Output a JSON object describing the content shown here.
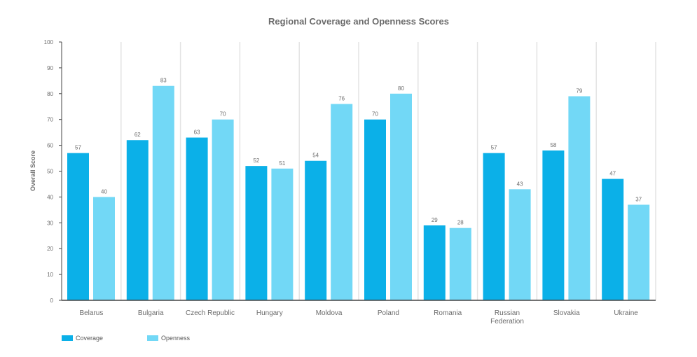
{
  "chart_data": {
    "type": "bar",
    "title": "Regional Coverage and Openness Scores",
    "xlabel": "",
    "ylabel": "Overall Score",
    "ylim": [
      0,
      100
    ],
    "yticks": [
      0,
      10,
      20,
      30,
      40,
      50,
      60,
      70,
      80,
      90,
      100
    ],
    "grid": "vertical separators between categories",
    "legend_position": "bottom-left",
    "categories": [
      "Belarus",
      "Bulgaria",
      "Czech Republic",
      "Hungary",
      "Moldova",
      "Poland",
      "Romania",
      "Russian Federation",
      "Slovakia",
      "Ukraine"
    ],
    "series": [
      {
        "name": "Coverage",
        "color": "#0bb0e8",
        "values": [
          57,
          62,
          63,
          52,
          54,
          70,
          29,
          57,
          58,
          47
        ]
      },
      {
        "name": "Openness",
        "color": "#72d8f6",
        "values": [
          40,
          83,
          70,
          51,
          76,
          80,
          28,
          43,
          79,
          37
        ]
      }
    ]
  }
}
